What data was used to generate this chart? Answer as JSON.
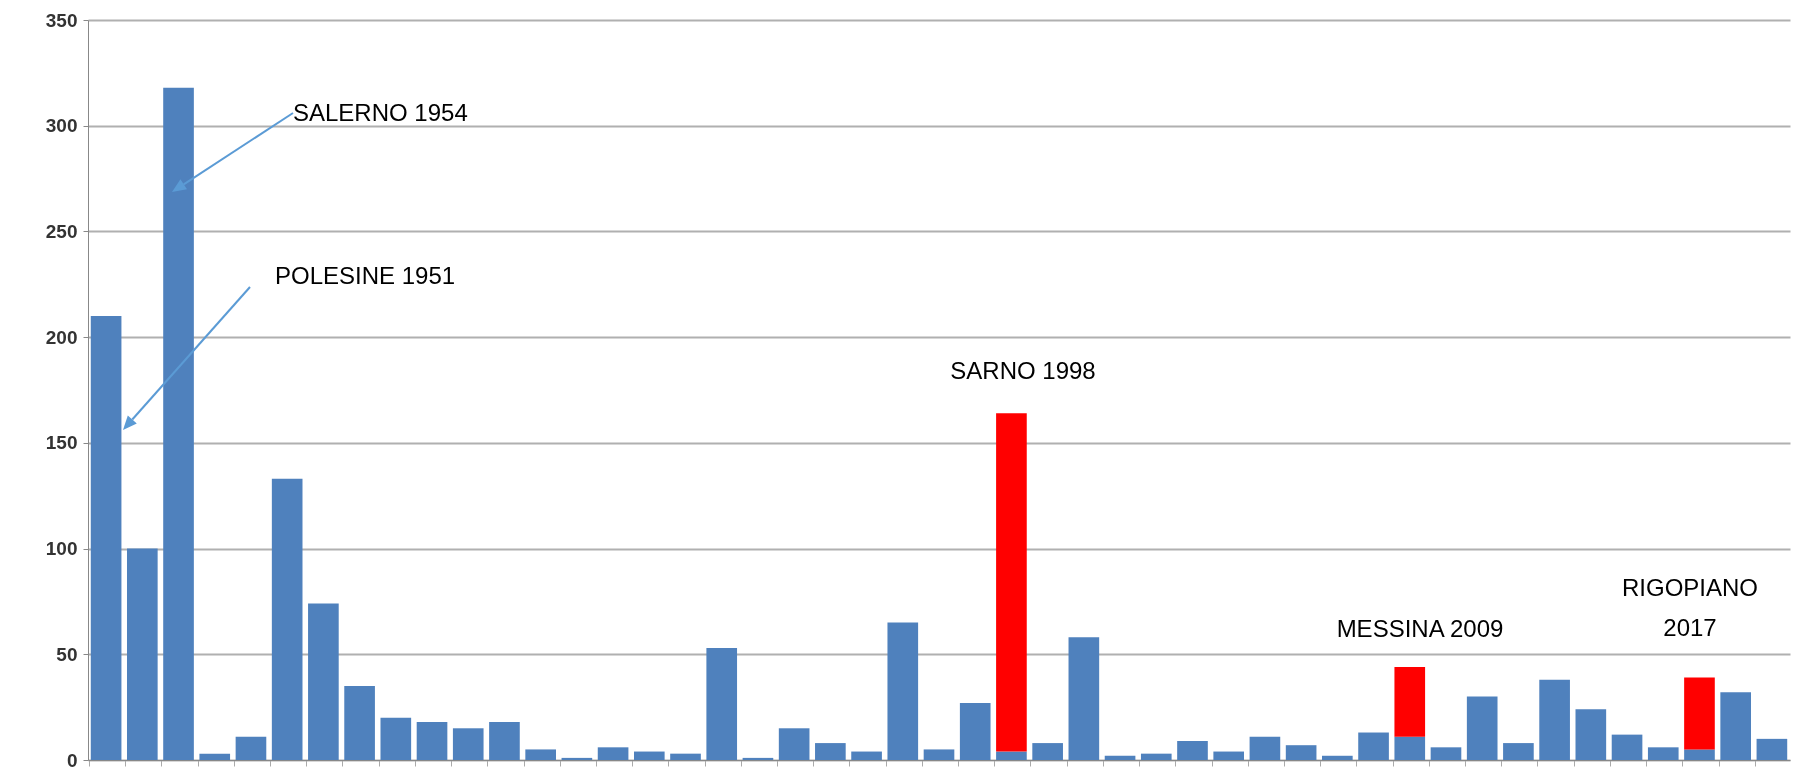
{
  "chart_data": {
    "type": "bar",
    "stacked": true,
    "categories": [
      null,
      null,
      null,
      null,
      null,
      null,
      null,
      null,
      null,
      null,
      null,
      null,
      null,
      null,
      null,
      null,
      null,
      null,
      null,
      null,
      null,
      null,
      null,
      null,
      null,
      null,
      null,
      null,
      null,
      null,
      null,
      null,
      null,
      null,
      null,
      null,
      null,
      null,
      null,
      null,
      null,
      null,
      null,
      null,
      null,
      null,
      null
    ],
    "series": [
      {
        "color": "#4f81bd",
        "values": [
          210,
          100,
          318,
          3,
          11,
          133,
          74,
          35,
          20,
          18,
          15,
          18,
          5,
          1,
          6,
          4,
          3,
          53,
          1,
          15,
          8,
          4,
          65,
          5,
          27,
          4,
          8,
          58,
          2,
          3,
          9,
          4,
          11,
          7,
          2,
          13,
          11,
          6,
          30,
          8,
          38,
          24,
          12,
          6,
          5,
          32,
          10
        ]
      },
      {
        "color": "#ff0000",
        "values": [
          null,
          null,
          null,
          null,
          null,
          null,
          null,
          null,
          null,
          null,
          null,
          null,
          null,
          null,
          null,
          null,
          null,
          null,
          null,
          null,
          null,
          null,
          null,
          null,
          null,
          160,
          null,
          null,
          null,
          null,
          null,
          null,
          null,
          null,
          null,
          null,
          33,
          null,
          null,
          null,
          null,
          null,
          null,
          null,
          34,
          null,
          null
        ]
      }
    ],
    "ylim": [
      0,
      350
    ],
    "yticks": [
      0,
      50,
      100,
      150,
      200,
      250,
      300,
      350
    ],
    "grid": "y",
    "annotations": [
      "SALERNO 1954",
      "POLESINE 1951",
      "SARNO 1998",
      "MESSINA 2009",
      "RIGOPIANO 2017"
    ]
  }
}
